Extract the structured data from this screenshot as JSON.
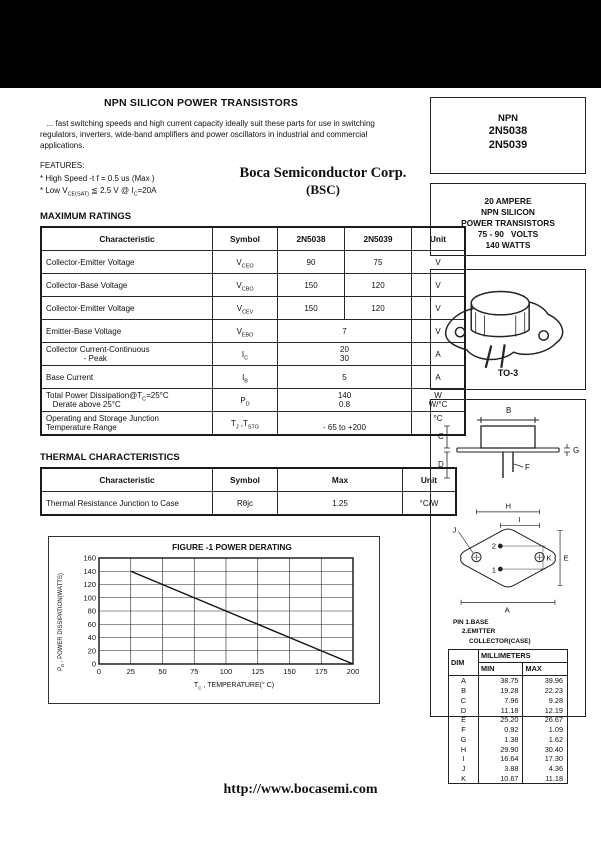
{
  "page": {
    "footer_url": "http://www.bocasemi.com"
  },
  "header": {
    "title": "NPN SILICON POWER TRANSISTORS",
    "description": "   ... fast switching speeds and high current capacity ideally suit these parts for use in switching  regulators, inverters, wide-band amplifiers and power oscillators in industrial and commercial applications.",
    "company": "Boca Semiconductor Corp.",
    "company_abbr": "(BSC)"
  },
  "features": {
    "heading": "FEATURES:",
    "items": [
      "* High Speed -t f = 0.5 us (Max )",
      "* Low V_{CE(SAT)} ≦ 2.5 V @ I_{C}=20A"
    ]
  },
  "max_ratings": {
    "heading": "MAXIMUM RATINGS",
    "headers": [
      "Characteristic",
      "Symbol",
      "2N5038",
      "2N5039",
      "Unit"
    ],
    "rows": [
      {
        "ch": "Collector-Emitter Voltage",
        "sym": "V_{CEO}",
        "values": [
          "90",
          "75"
        ],
        "unit": "V"
      },
      {
        "ch": "Collector-Base Voltage",
        "sym": "V_{CBO}",
        "values": [
          "150",
          "120"
        ],
        "unit": "V"
      },
      {
        "ch": "Collector-Emitter Voltage",
        "sym": "V_{CEV}",
        "values": [
          "150",
          "120"
        ],
        "unit": "V"
      },
      {
        "ch": "Emitter-Base Voltage",
        "sym": "V_{EBO}",
        "span": "7",
        "unit": "V"
      },
      {
        "ch": "Collector Current-Continuous\n                 - Peak",
        "sym": "I_{C}",
        "span": "20\n30",
        "unit": "A"
      },
      {
        "ch": "Base Current",
        "sym": "I_{B}",
        "span": "5",
        "unit": "A"
      },
      {
        "ch": "Total Power Dissipation@T_{C}=25°C\n   Derate above 25°C",
        "sym": "P_{D}",
        "span": "140\n0.8",
        "unit": "W\nW/°C"
      },
      {
        "ch": "Operating and Storage Junction\nTemperature Range",
        "sym": "T_{J} ,T_{STG}",
        "span": "- 65 to +200",
        "unit": "°C",
        "vb": true,
        "ut": true
      }
    ]
  },
  "thermal": {
    "heading": "THERMAL CHARACTERISTICS",
    "headers": [
      "Characteristic",
      "Symbol",
      "Max",
      "Unit"
    ],
    "rows": [
      {
        "ch": "Thermal Resistance Junction to Case",
        "sym": "Rθjc",
        "max": "1.25",
        "unit": "°C/W"
      }
    ]
  },
  "chart_data": {
    "type": "line",
    "title": "FIGURE -1 POWER DERATING",
    "xlabel": "T_{C} , TEMPERATURE(° C)",
    "ylabel": "P_{D} , POWER DISSIPATION(WATTS)",
    "xlim": [
      0,
      200
    ],
    "ylim": [
      0,
      160
    ],
    "xticks": [
      0,
      25,
      50,
      75,
      100,
      125,
      150,
      175,
      200
    ],
    "yticks": [
      0,
      20,
      40,
      60,
      80,
      100,
      120,
      140,
      160
    ],
    "grid": true,
    "legend": "none",
    "series": [
      {
        "name": "power-derating-line",
        "points": [
          [
            25,
            140
          ],
          [
            200,
            0
          ]
        ]
      }
    ]
  },
  "right_panel": {
    "part_box": {
      "lines": [
        "NPN",
        "2N5038",
        "2N5039"
      ]
    },
    "summary_box": {
      "lines": [
        "20 AMPERE",
        "NPN SILICON",
        "POWER TRANSISTORS",
        "75 - 90   VOLTS",
        "140 WATTS"
      ]
    },
    "package_box": {
      "label": "TO-3"
    },
    "outline": {
      "side_labels": {
        "b": "B",
        "c": "C",
        "d": "D",
        "f": "F",
        "g": "G"
      },
      "bottom_labels": {
        "h": "H",
        "i": "I",
        "j": "J",
        "k": "K",
        "e": "E",
        "a": "A",
        "pin1": "1",
        "pin2": "2"
      },
      "pin_note": [
        "PIN 1.BASE",
        "     2.EMITTER",
        "         COLLECTOR(CASE)"
      ],
      "dim_table": {
        "col_dim": "DIM",
        "col_group": "MILLIMETERS",
        "col_min": "MIN",
        "col_max": "MAX",
        "rows": [
          [
            "A",
            "38.75",
            "39.96"
          ],
          [
            "B",
            "19.28",
            "22.23"
          ],
          [
            "C",
            "7.96",
            "9.28"
          ],
          [
            "D",
            "11.18",
            "12.19"
          ],
          [
            "E",
            "25.20",
            "26.67"
          ],
          [
            "F",
            "0.92",
            "1.09"
          ],
          [
            "G",
            "1.38",
            "1.62"
          ],
          [
            "H",
            "29.90",
            "30.40"
          ],
          [
            "I",
            "16.64",
            "17.30"
          ],
          [
            "J",
            "3.88",
            "4.36"
          ],
          [
            "K",
            "10.67",
            "11.18"
          ]
        ]
      }
    }
  }
}
